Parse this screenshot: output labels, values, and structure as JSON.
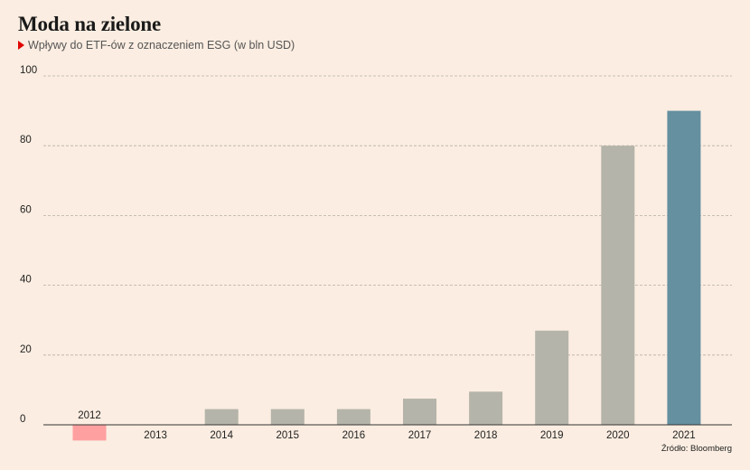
{
  "header": {
    "title": "Moda na zielone",
    "subtitle": "Wpływy do ETF-ów z oznaczeniem ESG (w bln USD)"
  },
  "footer": {
    "source": "Źródło: Bloomberg"
  },
  "colors": {
    "background": "#fbede1",
    "bar_default": "#b5b4aa",
    "bar_highlight": "#6490a0",
    "bar_negative": "#ffa0a0",
    "gridline": "#b8aea6",
    "axis": "#333333",
    "marker": "#e10600"
  },
  "chart_data": {
    "type": "bar",
    "title": "Moda na zielone",
    "subtitle": "Wpływy do ETF-ów z oznaczeniem ESG (w bln USD)",
    "xlabel": "",
    "ylabel": "",
    "categories": [
      "2012",
      "2013",
      "2014",
      "2015",
      "2016",
      "2017",
      "2018",
      "2019",
      "2020",
      "2021"
    ],
    "values": [
      -4.5,
      0,
      4.5,
      4.5,
      4.5,
      7.5,
      9.5,
      27,
      80,
      90
    ],
    "ylim": [
      0,
      100
    ],
    "yticks": [
      0,
      20,
      40,
      60,
      80,
      100
    ],
    "grid": true,
    "highlight_category": "2021",
    "negative_color_category": "2012",
    "source": "Źródło: Bloomberg"
  }
}
